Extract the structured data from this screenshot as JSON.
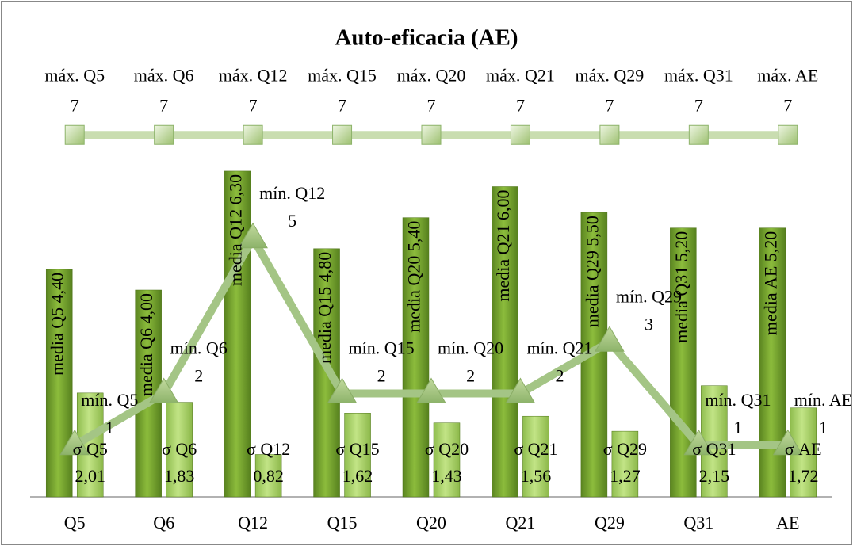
{
  "chart_data": {
    "type": "bar",
    "title": "Auto-eficacia (AE)",
    "categories": [
      "Q5",
      "Q6",
      "Q12",
      "Q15",
      "Q20",
      "Q21",
      "Q29",
      "Q31",
      "AE"
    ],
    "ylim": [
      0,
      8
    ],
    "series": [
      {
        "name": "media",
        "type": "bar",
        "color": "#79a532",
        "values": [
          4.4,
          4.0,
          6.3,
          4.8,
          5.4,
          6.0,
          5.5,
          5.2,
          5.2
        ],
        "value_labels": [
          "4,40",
          "4,00",
          "6,30",
          "4,80",
          "5,40",
          "6,00",
          "5,50",
          "5,20",
          "5,20"
        ]
      },
      {
        "name": "σ",
        "type": "bar",
        "color": "#acd26c",
        "values": [
          2.01,
          1.83,
          0.82,
          1.62,
          1.43,
          1.56,
          1.27,
          2.15,
          1.72
        ],
        "value_labels": [
          "2,01",
          "1,83",
          "0,82",
          "1,62",
          "1,43",
          "1,56",
          "1,27",
          "2,15",
          "1,72"
        ]
      },
      {
        "name": "mín.",
        "type": "line",
        "color": "#a4c585",
        "values": [
          1,
          2,
          5,
          2,
          2,
          2,
          3,
          1,
          1
        ]
      },
      {
        "name": "máx.",
        "type": "line",
        "color": "#c9ddb0",
        "values": [
          7,
          7,
          7,
          7,
          7,
          7,
          7,
          7,
          7
        ]
      }
    ]
  }
}
